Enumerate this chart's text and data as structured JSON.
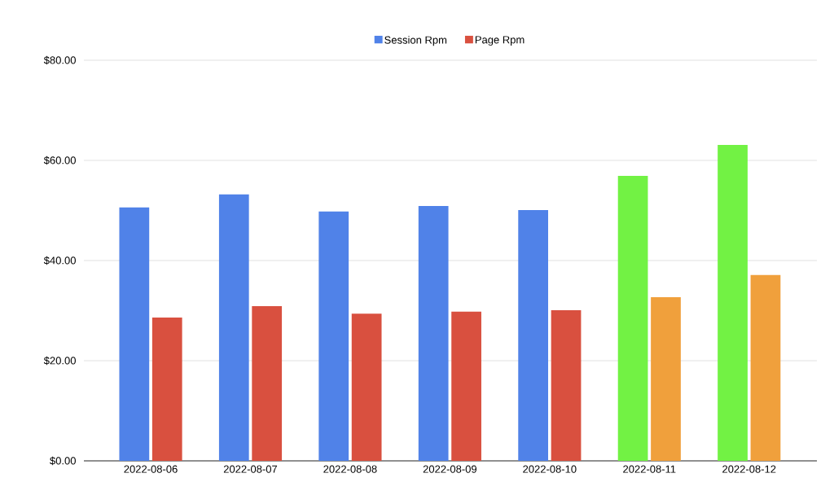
{
  "chart_data": {
    "type": "bar",
    "categories": [
      "2022-08-06",
      "2022-08-07",
      "2022-08-08",
      "2022-08-09",
      "2022-08-10",
      "2022-08-11",
      "2022-08-12"
    ],
    "series": [
      {
        "name": "Session Rpm",
        "color": "#5082e8",
        "colors": [
          "#5082e8",
          "#5082e8",
          "#5082e8",
          "#5082e8",
          "#5082e8",
          "#72f244",
          "#72f244"
        ],
        "values": [
          50.6,
          53.2,
          49.8,
          50.9,
          50.1,
          56.9,
          63.1
        ]
      },
      {
        "name": "Page Rpm",
        "color": "#d9503f",
        "colors": [
          "#d9503f",
          "#d9503f",
          "#d9503f",
          "#d9503f",
          "#d9503f",
          "#f0a03c",
          "#f0a03c"
        ],
        "values": [
          28.6,
          30.9,
          29.4,
          29.8,
          30.1,
          32.7,
          37.1
        ]
      }
    ],
    "ylim": [
      0,
      80
    ],
    "yticks": [
      {
        "value": 0,
        "label": "$0.00"
      },
      {
        "value": 20,
        "label": "$20.00"
      },
      {
        "value": 40,
        "label": "$40.00"
      },
      {
        "value": 60,
        "label": "$60.00"
      },
      {
        "value": 80,
        "label": "$80.00"
      }
    ],
    "grid": "y",
    "legend": "top"
  }
}
